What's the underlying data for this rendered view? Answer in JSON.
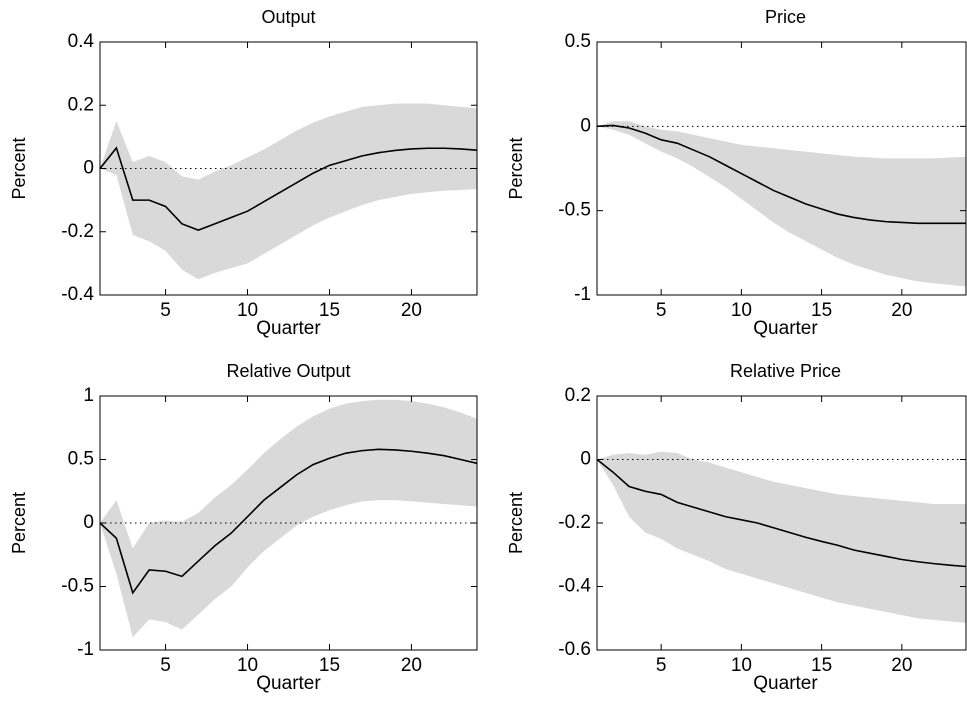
{
  "chart_data": [
    {
      "type": "line",
      "title": "Output",
      "xlabel": "Quarter",
      "ylabel": "Percent",
      "x": [
        1,
        2,
        3,
        4,
        5,
        6,
        7,
        8,
        9,
        10,
        11,
        12,
        13,
        14,
        15,
        16,
        17,
        18,
        19,
        20,
        21,
        22,
        23,
        24
      ],
      "values": [
        0,
        0.065,
        -0.1,
        -0.1,
        -0.12,
        -0.175,
        -0.195,
        -0.175,
        -0.155,
        -0.135,
        -0.105,
        -0.075,
        -0.045,
        -0.015,
        0.01,
        0.025,
        0.04,
        0.05,
        0.057,
        0.062,
        0.064,
        0.064,
        0.062,
        0.058
      ],
      "upper": [
        0,
        0.15,
        0.02,
        0.04,
        0.02,
        -0.025,
        -0.035,
        -0.01,
        0.01,
        0.035,
        0.06,
        0.09,
        0.12,
        0.145,
        0.165,
        0.18,
        0.195,
        0.2,
        0.205,
        0.205,
        0.205,
        0.2,
        0.195,
        0.19
      ],
      "lower": [
        0,
        -0.02,
        -0.21,
        -0.23,
        -0.26,
        -0.32,
        -0.35,
        -0.33,
        -0.315,
        -0.3,
        -0.27,
        -0.24,
        -0.21,
        -0.18,
        -0.155,
        -0.135,
        -0.115,
        -0.1,
        -0.09,
        -0.08,
        -0.075,
        -0.07,
        -0.068,
        -0.065
      ],
      "color": "#000000",
      "band_color": "#d9d9d9",
      "zero_line": true,
      "xlim": [
        1,
        24
      ],
      "xticks": [
        5,
        10,
        15,
        20
      ],
      "ylim": [
        -0.4,
        0.4
      ],
      "yticks": [
        -0.4,
        -0.2,
        0,
        0.2,
        0.4
      ]
    },
    {
      "type": "line",
      "title": "Price",
      "xlabel": "Quarter",
      "ylabel": "Percent",
      "x": [
        1,
        2,
        3,
        4,
        5,
        6,
        7,
        8,
        9,
        10,
        11,
        12,
        13,
        14,
        15,
        16,
        17,
        18,
        19,
        20,
        21,
        22,
        23,
        24
      ],
      "values": [
        0,
        0.005,
        -0.01,
        -0.04,
        -0.08,
        -0.1,
        -0.14,
        -0.18,
        -0.23,
        -0.28,
        -0.33,
        -0.38,
        -0.42,
        -0.46,
        -0.49,
        -0.52,
        -0.54,
        -0.555,
        -0.565,
        -0.57,
        -0.575,
        -0.575,
        -0.575,
        -0.575
      ],
      "upper": [
        0,
        0.03,
        0.03,
        0,
        -0.02,
        -0.03,
        -0.05,
        -0.07,
        -0.09,
        -0.11,
        -0.12,
        -0.13,
        -0.14,
        -0.15,
        -0.16,
        -0.17,
        -0.18,
        -0.185,
        -0.19,
        -0.19,
        -0.19,
        -0.19,
        -0.185,
        -0.18
      ],
      "lower": [
        0,
        -0.02,
        -0.05,
        -0.1,
        -0.15,
        -0.19,
        -0.24,
        -0.3,
        -0.36,
        -0.43,
        -0.5,
        -0.57,
        -0.63,
        -0.68,
        -0.73,
        -0.78,
        -0.82,
        -0.85,
        -0.88,
        -0.9,
        -0.92,
        -0.93,
        -0.94,
        -0.95
      ],
      "color": "#000000",
      "band_color": "#d9d9d9",
      "zero_line": true,
      "xlim": [
        1,
        24
      ],
      "xticks": [
        5,
        10,
        15,
        20
      ],
      "ylim": [
        -1,
        0.5
      ],
      "yticks": [
        -1,
        -0.5,
        0,
        0.5
      ]
    },
    {
      "type": "line",
      "title": "Relative Output",
      "xlabel": "Quarter",
      "ylabel": "Percent",
      "x": [
        1,
        2,
        3,
        4,
        5,
        6,
        7,
        8,
        9,
        10,
        11,
        12,
        13,
        14,
        15,
        16,
        17,
        18,
        19,
        20,
        21,
        22,
        23,
        24
      ],
      "values": [
        0,
        -0.12,
        -0.55,
        -0.37,
        -0.38,
        -0.42,
        -0.3,
        -0.18,
        -0.08,
        0.05,
        0.18,
        0.28,
        0.38,
        0.46,
        0.51,
        0.55,
        0.57,
        0.58,
        0.575,
        0.565,
        0.55,
        0.53,
        0.5,
        0.47
      ],
      "upper": [
        0,
        0.18,
        -0.2,
        0,
        0.02,
        0.01,
        0.08,
        0.2,
        0.3,
        0.42,
        0.55,
        0.66,
        0.76,
        0.84,
        0.9,
        0.94,
        0.96,
        0.97,
        0.97,
        0.96,
        0.94,
        0.91,
        0.87,
        0.82
      ],
      "lower": [
        0,
        -0.4,
        -0.9,
        -0.76,
        -0.78,
        -0.84,
        -0.72,
        -0.6,
        -0.5,
        -0.35,
        -0.22,
        -0.12,
        -0.02,
        0.05,
        0.1,
        0.14,
        0.17,
        0.18,
        0.18,
        0.17,
        0.16,
        0.15,
        0.14,
        0.13
      ],
      "color": "#000000",
      "band_color": "#d9d9d9",
      "zero_line": true,
      "xlim": [
        1,
        24
      ],
      "xticks": [
        5,
        10,
        15,
        20
      ],
      "ylim": [
        -1,
        1
      ],
      "yticks": [
        -1,
        -0.5,
        0,
        0.5,
        1
      ]
    },
    {
      "type": "line",
      "title": "Relative Price",
      "xlabel": "Quarter",
      "ylabel": "Percent",
      "x": [
        1,
        2,
        3,
        4,
        5,
        6,
        7,
        8,
        9,
        10,
        11,
        12,
        13,
        14,
        15,
        16,
        17,
        18,
        19,
        20,
        21,
        22,
        23,
        24
      ],
      "values": [
        0,
        -0.04,
        -0.085,
        -0.1,
        -0.11,
        -0.135,
        -0.15,
        -0.165,
        -0.18,
        -0.19,
        -0.2,
        -0.215,
        -0.23,
        -0.245,
        -0.258,
        -0.27,
        -0.285,
        -0.295,
        -0.305,
        -0.315,
        -0.322,
        -0.328,
        -0.333,
        -0.337
      ],
      "upper": [
        0,
        0.015,
        0.02,
        0.015,
        0.025,
        0.02,
        0,
        -0.01,
        -0.025,
        -0.04,
        -0.055,
        -0.07,
        -0.08,
        -0.09,
        -0.1,
        -0.11,
        -0.115,
        -0.12,
        -0.125,
        -0.13,
        -0.135,
        -0.14,
        -0.14,
        -0.14
      ],
      "lower": [
        0,
        -0.08,
        -0.18,
        -0.23,
        -0.25,
        -0.28,
        -0.3,
        -0.32,
        -0.345,
        -0.36,
        -0.375,
        -0.39,
        -0.405,
        -0.42,
        -0.435,
        -0.45,
        -0.46,
        -0.47,
        -0.48,
        -0.49,
        -0.5,
        -0.505,
        -0.51,
        -0.515
      ],
      "color": "#000000",
      "band_color": "#d9d9d9",
      "zero_line": true,
      "xlim": [
        1,
        24
      ],
      "xticks": [
        5,
        10,
        15,
        20
      ],
      "ylim": [
        -0.6,
        0.2
      ],
      "yticks": [
        -0.6,
        -0.4,
        -0.2,
        0,
        0.2
      ]
    }
  ]
}
